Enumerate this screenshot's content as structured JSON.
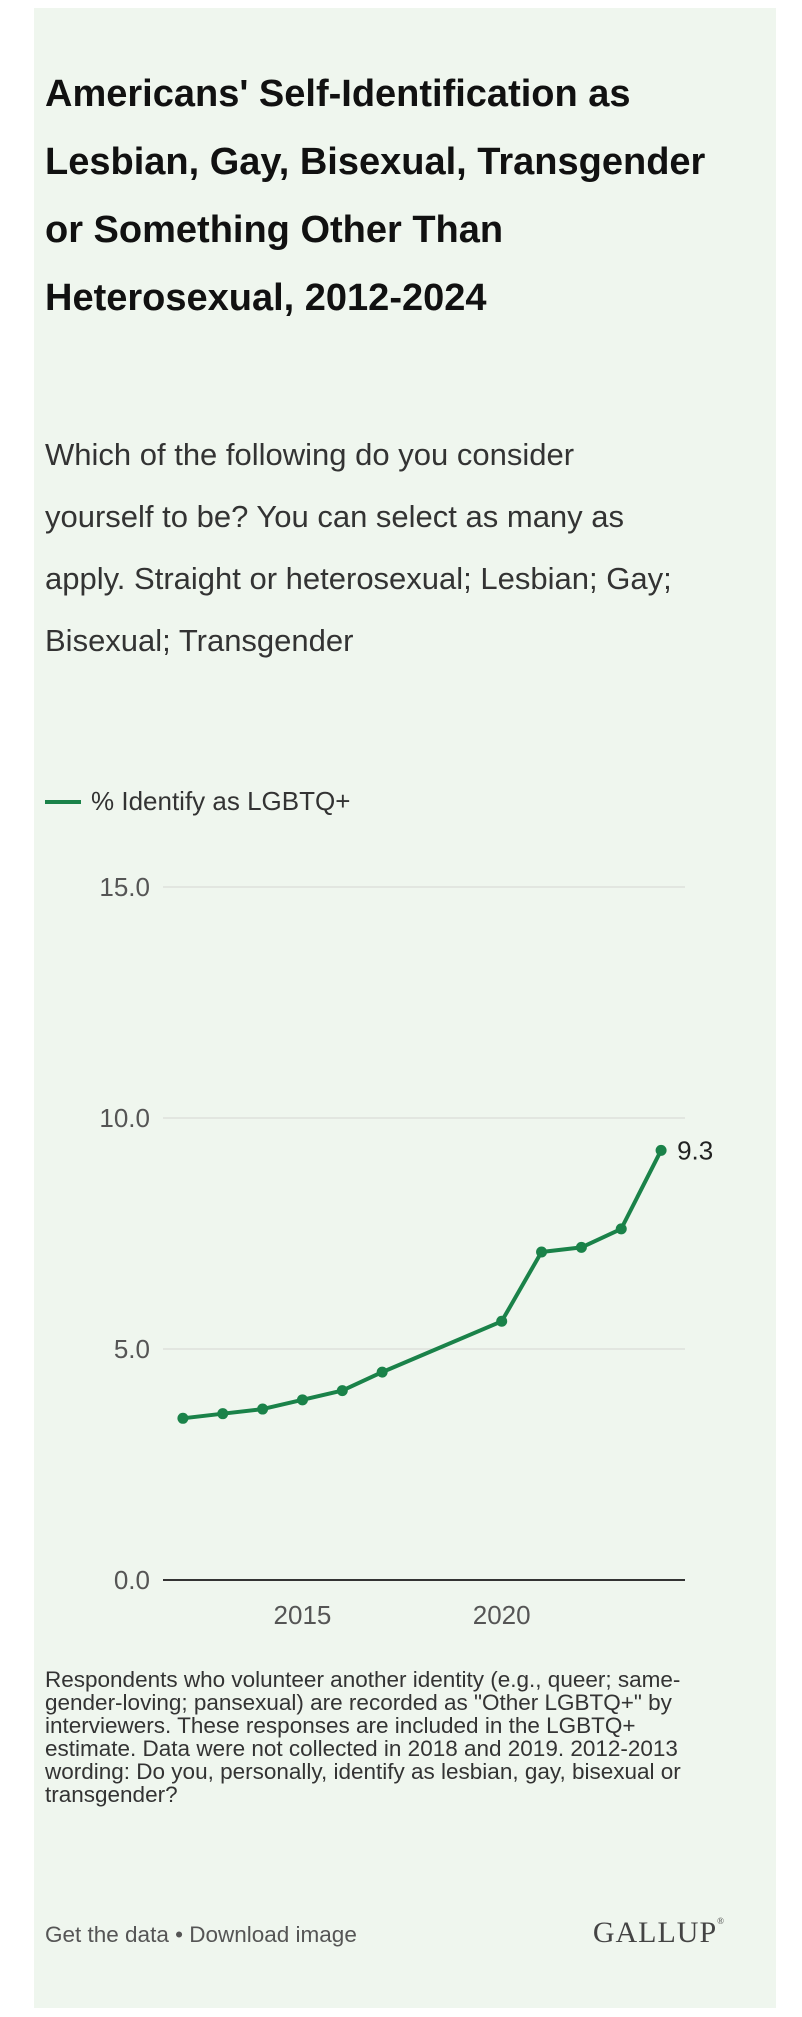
{
  "title": "Americans' Self-Identification as Lesbian, Gay, Bisexual, Transgender or Something Other Than Heterosexual, 2012-2024",
  "subtitle": "Which of the following do you consider yourself to be? You can select as many as apply. Straight or heterosexual; Lesbian; Gay; Bisexual; Transgender",
  "legend": {
    "label": "% Identify as LGBTQ+",
    "color": "#1a8249"
  },
  "chart_data": {
    "type": "line",
    "series": [
      {
        "name": "% Identify as LGBTQ+",
        "x": [
          2012,
          2013,
          2014,
          2015,
          2016,
          2017,
          2020,
          2021,
          2022,
          2023,
          2024
        ],
        "values": [
          3.5,
          3.6,
          3.7,
          3.9,
          4.1,
          4.5,
          5.6,
          7.1,
          7.2,
          7.6,
          9.3
        ],
        "color": "#1a8249"
      }
    ],
    "x_tick_values": [
      2015,
      2020
    ],
    "x_tick_labels": [
      "2015",
      "2020"
    ],
    "y_tick_values": [
      0,
      5,
      10,
      15
    ],
    "y_tick_labels": [
      "0.0",
      "5.0",
      "10.0",
      "15.0"
    ],
    "xlim": [
      2011.5,
      2024.6
    ],
    "ylim": [
      0,
      15
    ],
    "end_label": "9.3",
    "xlabel": "",
    "ylabel": ""
  },
  "footnote": "Respondents who volunteer another identity (e.g., queer; same-gender-loving; pansexual) are recorded as \"Other LGBTQ+\" by interviewers. These responses are included in the LGBTQ+ estimate. Data were not collected in 2018 and 2019. 2012-2013 wording: Do you, personally, identify as lesbian, gay, bisexual or transgender?",
  "footer": {
    "get_data": "Get the data",
    "separator": " • ",
    "download": "Download image",
    "logo": "GALLUP"
  }
}
